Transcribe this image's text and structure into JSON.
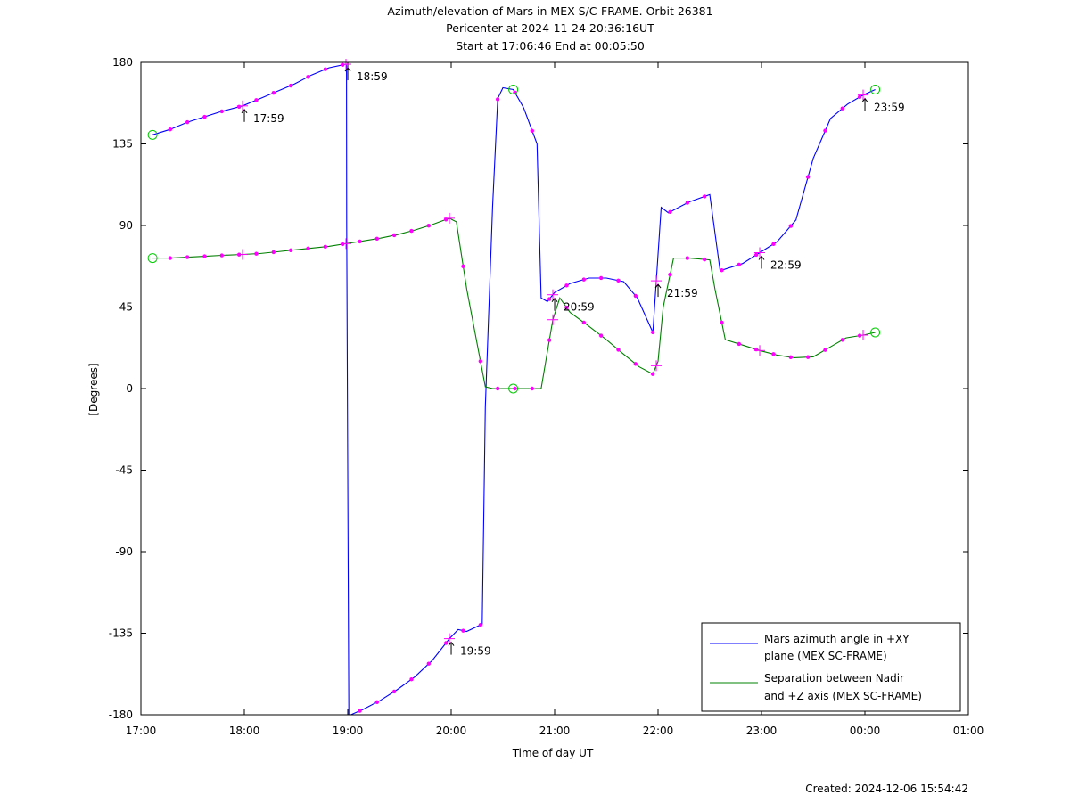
{
  "chart_data": {
    "type": "line",
    "title_lines": [
      "Azimuth/elevation of Mars in MEX S/C-FRAME.  Orbit 26381",
      "Pericenter at 2024-11-24 20:36:16UT",
      "Start at 17:06:46 End at 00:05:50"
    ],
    "xlabel": "Time of day UT",
    "ylabel": "[Degrees]",
    "xlim": [
      17.0,
      25.0
    ],
    "ylim": [
      -180,
      180
    ],
    "x_ticks": [
      17,
      18,
      19,
      20,
      21,
      22,
      23,
      24,
      25
    ],
    "x_tick_labels": [
      "17:00",
      "18:00",
      "19:00",
      "20:00",
      "21:00",
      "22:00",
      "23:00",
      "00:00",
      "01:00"
    ],
    "y_ticks": [
      180,
      135,
      90,
      45,
      0,
      -45,
      -90,
      -135,
      -180
    ],
    "y_tick_labels": [
      "180",
      "135",
      "90",
      "45",
      "0",
      "-45",
      "-90",
      "-135",
      "-180"
    ],
    "legend_position": "bottom-right",
    "series": [
      {
        "name": "Mars azimuth angle in +XY plane (MEX SC-FRAME)",
        "legend_lines": [
          "Mars azimuth angle in +XY",
          "plane (MEX SC-FRAME)"
        ],
        "color": "#0000ff",
        "x": [
          17.113,
          17.283,
          17.45,
          17.617,
          17.783,
          17.983,
          18.15,
          18.317,
          18.483,
          18.65,
          18.817,
          18.983,
          18.988,
          18.99,
          19.01,
          19.03,
          19.15,
          19.317,
          19.483,
          19.65,
          19.817,
          19.983,
          20.067,
          20.15,
          20.3,
          20.33,
          20.4,
          20.45,
          20.5,
          20.6,
          20.7,
          20.83,
          20.87,
          20.93,
          21.0,
          21.15,
          21.333,
          21.5,
          21.667,
          21.8,
          21.95,
          22.03,
          22.1,
          22.3,
          22.5,
          22.6,
          22.817,
          22.983,
          23.15,
          23.333,
          23.5,
          23.667,
          23.833,
          23.983,
          24.1
        ],
        "y": [
          140,
          143,
          147,
          150,
          153,
          156,
          160,
          164,
          168,
          173,
          177,
          179,
          178,
          90,
          -180,
          -180,
          -177,
          -172,
          -166,
          -159,
          -150,
          -138,
          -133,
          -134,
          -130,
          -10,
          100,
          160,
          166,
          165,
          155,
          135,
          50,
          48,
          53,
          58,
          61,
          61,
          59,
          50,
          31,
          100,
          97,
          103,
          107,
          65,
          69,
          75,
          81,
          93,
          127,
          149,
          157,
          162,
          165
        ]
      },
      {
        "name": "Separation between Nadir and +Z axis (MEX SC-FRAME)",
        "legend_lines": [
          "Separation between Nadir",
          "and +Z axis (MEX SC-FRAME)"
        ],
        "color": "#008000",
        "x": [
          17.113,
          17.283,
          17.45,
          17.617,
          17.783,
          17.983,
          18.15,
          18.317,
          18.483,
          18.65,
          18.817,
          18.983,
          19.15,
          19.317,
          19.483,
          19.65,
          19.817,
          19.983,
          20.05,
          20.15,
          20.33,
          20.4,
          20.6,
          20.83,
          20.87,
          20.983,
          21.05,
          21.15,
          21.317,
          21.5,
          21.667,
          21.817,
          21.95,
          22.0,
          22.05,
          22.15,
          22.3,
          22.5,
          22.55,
          22.65,
          22.817,
          22.983,
          23.15,
          23.317,
          23.5,
          23.667,
          23.817,
          23.983,
          24.1
        ],
        "y": [
          72,
          72,
          72.5,
          73,
          73.5,
          74,
          74.5,
          75.5,
          76.5,
          77.5,
          78.5,
          80,
          81.5,
          83,
          85,
          87.5,
          90.5,
          94,
          92,
          55,
          1,
          0,
          0,
          0,
          0,
          38,
          50,
          42,
          35,
          27,
          19,
          12,
          8,
          15,
          45,
          72,
          72,
          71,
          55,
          27,
          24,
          21,
          18.5,
          17,
          17.5,
          23,
          28,
          29.5,
          31
        ]
      }
    ],
    "time_marks": {
      "labels": [
        "17:59",
        "18:59",
        "19:59",
        "20:59",
        "21:59",
        "22:59",
        "23:59"
      ]
    },
    "footer": "Created: 2024-12-06 15:54:42"
  }
}
